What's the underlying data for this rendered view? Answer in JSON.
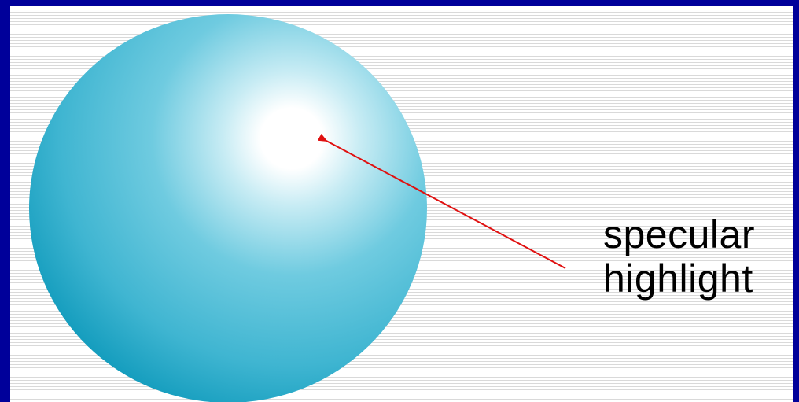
{
  "annotation": {
    "line1": "specular",
    "line2": "highlight"
  },
  "colors": {
    "frame": "#00009a",
    "sphere_edge": "#0a97b9",
    "sphere_mid": "#56c1d8",
    "highlight": "#ffffff",
    "arrow": "#e01010"
  }
}
